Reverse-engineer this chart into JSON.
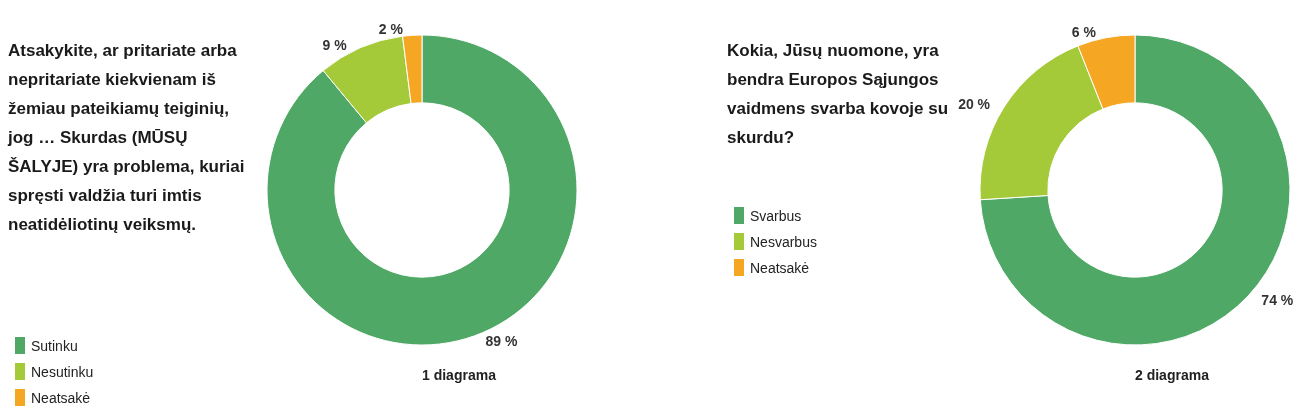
{
  "chart_data": [
    {
      "type": "donut",
      "title": "Atsakykite, ar pritariate arba nepritariate kiekvienam iš žemiau pateikiamų teiginių, jog … Skurdas (MŪSŲ ŠALYJE) yra problema, kuriai spręsti valdžia turi imtis neatidėliotinų veiksmų.",
      "categories": [
        "Sutinku",
        "Nesutinku",
        "Neatsakė"
      ],
      "values": [
        89,
        9,
        2
      ],
      "colors": [
        "#4fa866",
        "#a4ca3a",
        "#f5a623"
      ],
      "value_labels": [
        "89 %",
        "9 %",
        "2 %"
      ],
      "annotations": [
        "1 diagrama"
      ],
      "legend": "bottom left"
    },
    {
      "type": "donut",
      "title": "Kokia, Jūsų nuomone, yra bendra Europos Sąjungos vaidmens svarba kovoje su skurdu?",
      "categories": [
        "Svarbus",
        "Nesvarbus",
        "Neatsakė"
      ],
      "values": [
        74,
        20,
        6
      ],
      "colors": [
        "#4fa866",
        "#a4ca3a",
        "#f5a623"
      ],
      "value_labels": [
        "74 %",
        "20 %",
        "6 %"
      ],
      "annotations": [
        "2 diagrama"
      ],
      "legend": "left"
    }
  ]
}
